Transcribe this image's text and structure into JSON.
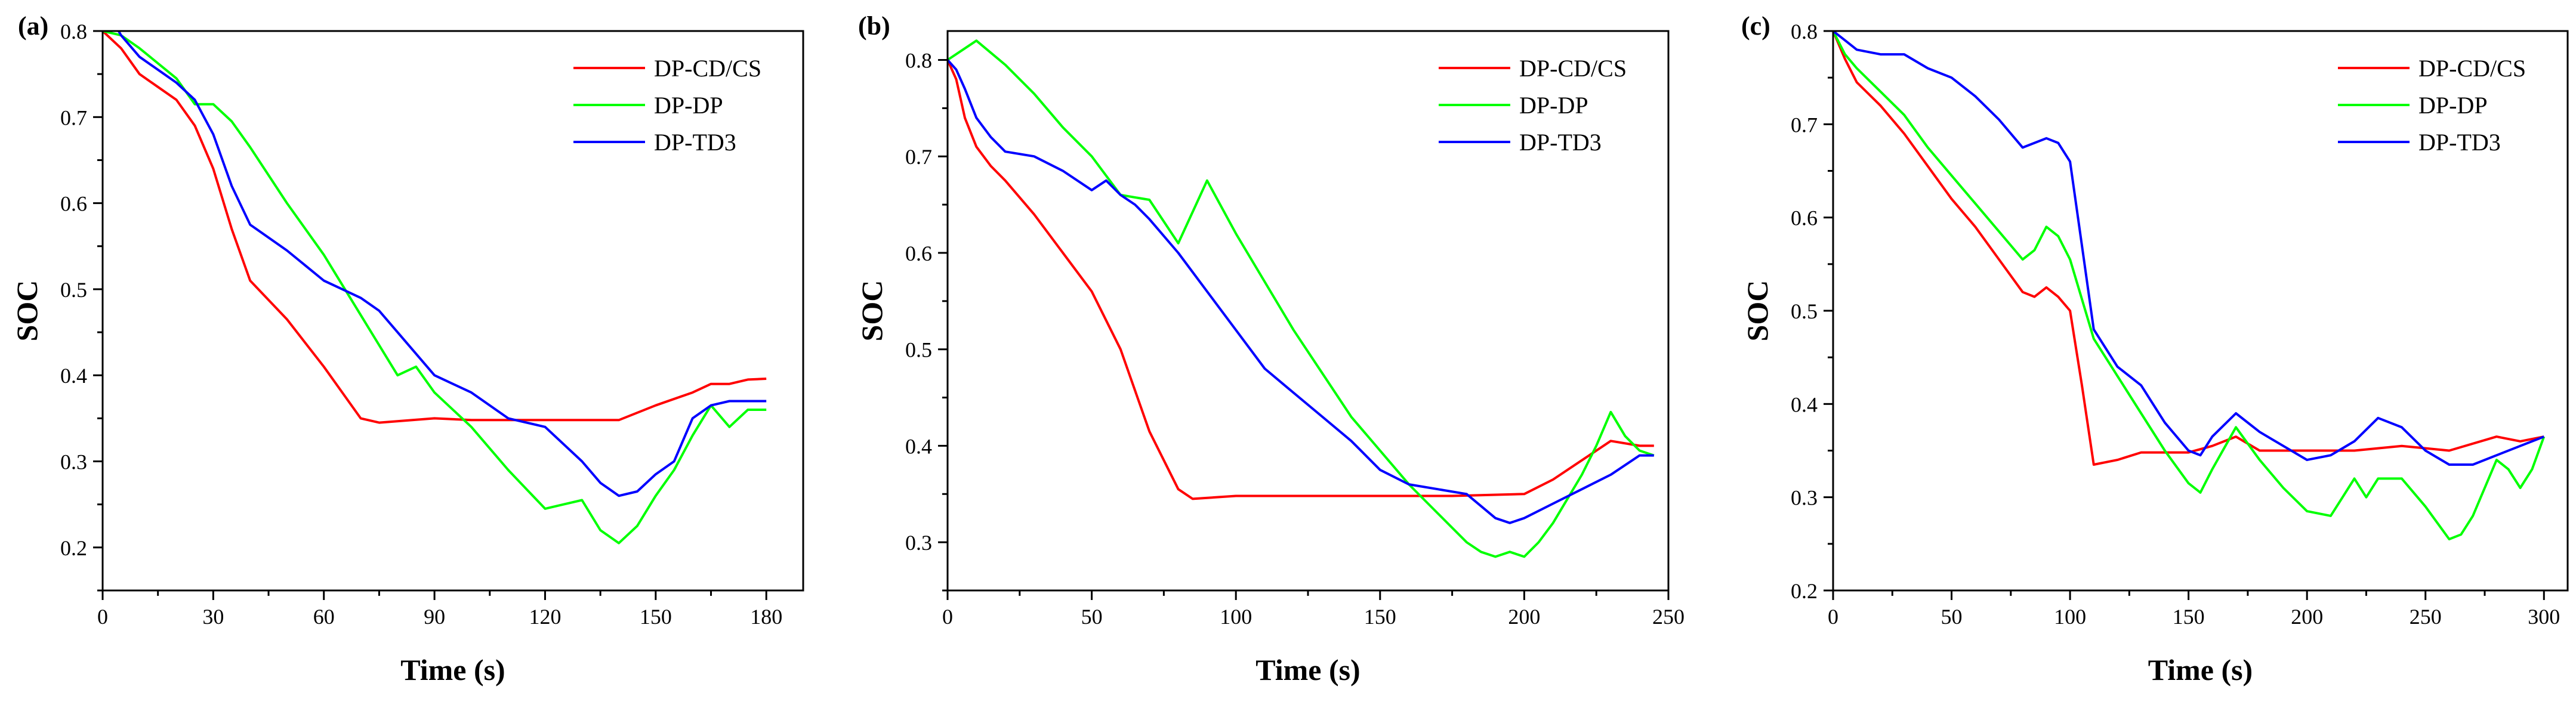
{
  "chart_data": [
    {
      "type": "line",
      "panel_label": "(a)",
      "xlabel": "Time (s)",
      "ylabel": "SOC",
      "xlim": [
        0,
        190
      ],
      "ylim": [
        0.15,
        0.8
      ],
      "xticks": [
        0,
        30,
        60,
        90,
        120,
        150,
        180
      ],
      "yticks": [
        0.2,
        0.3,
        0.4,
        0.5,
        0.6,
        0.7,
        0.8
      ],
      "grid": false,
      "legend_position": "top-right",
      "series": [
        {
          "name": "DP-CD/CS",
          "color": "#ff0000",
          "x": [
            0,
            5,
            10,
            15,
            20,
            25,
            30,
            35,
            40,
            50,
            60,
            70,
            75,
            90,
            100,
            120,
            130,
            140,
            150,
            160,
            165,
            170,
            175,
            180
          ],
          "y": [
            0.8,
            0.78,
            0.75,
            0.735,
            0.72,
            0.69,
            0.64,
            0.57,
            0.51,
            0.465,
            0.41,
            0.35,
            0.345,
            0.35,
            0.348,
            0.348,
            0.348,
            0.348,
            0.365,
            0.38,
            0.39,
            0.39,
            0.395,
            0.396
          ]
        },
        {
          "name": "DP-DP",
          "color": "#00ff00",
          "x": [
            0,
            5,
            10,
            20,
            25,
            30,
            35,
            40,
            50,
            60,
            70,
            80,
            85,
            90,
            100,
            110,
            120,
            125,
            130,
            135,
            140,
            145,
            150,
            155,
            160,
            165,
            170,
            175,
            180
          ],
          "y": [
            0.8,
            0.795,
            0.78,
            0.745,
            0.715,
            0.715,
            0.695,
            0.665,
            0.6,
            0.54,
            0.47,
            0.4,
            0.41,
            0.38,
            0.34,
            0.29,
            0.245,
            0.25,
            0.255,
            0.22,
            0.205,
            0.225,
            0.26,
            0.29,
            0.33,
            0.365,
            0.34,
            0.36,
            0.36
          ]
        },
        {
          "name": "DP-TD3",
          "color": "#0000ff",
          "x": [
            0,
            3,
            5,
            10,
            20,
            25,
            30,
            35,
            40,
            50,
            60,
            65,
            70,
            75,
            80,
            90,
            100,
            110,
            120,
            130,
            135,
            140,
            145,
            150,
            155,
            160,
            165,
            170,
            175,
            180
          ],
          "y": [
            0.8,
            0.81,
            0.795,
            0.77,
            0.74,
            0.72,
            0.68,
            0.62,
            0.575,
            0.545,
            0.51,
            0.5,
            0.49,
            0.475,
            0.45,
            0.4,
            0.38,
            0.35,
            0.34,
            0.3,
            0.275,
            0.26,
            0.265,
            0.285,
            0.3,
            0.35,
            0.365,
            0.37,
            0.37,
            0.37
          ]
        }
      ]
    },
    {
      "type": "line",
      "panel_label": "(b)",
      "xlabel": "Time (s)",
      "ylabel": "SOC",
      "xlim": [
        0,
        250
      ],
      "ylim": [
        0.25,
        0.83
      ],
      "xticks": [
        0,
        50,
        100,
        150,
        200,
        250
      ],
      "yticks": [
        0.3,
        0.4,
        0.5,
        0.6,
        0.7,
        0.8
      ],
      "grid": false,
      "legend_position": "top-right",
      "series": [
        {
          "name": "DP-CD/CS",
          "color": "#ff0000",
          "x": [
            0,
            3,
            6,
            10,
            15,
            20,
            30,
            40,
            50,
            60,
            70,
            75,
            80,
            85,
            100,
            150,
            175,
            200,
            210,
            220,
            230,
            240,
            245
          ],
          "y": [
            0.8,
            0.78,
            0.74,
            0.71,
            0.69,
            0.675,
            0.64,
            0.6,
            0.56,
            0.5,
            0.415,
            0.385,
            0.355,
            0.345,
            0.348,
            0.348,
            0.348,
            0.35,
            0.365,
            0.385,
            0.405,
            0.4,
            0.4
          ]
        },
        {
          "name": "DP-DP",
          "color": "#00ff00",
          "x": [
            0,
            5,
            10,
            20,
            30,
            40,
            50,
            60,
            70,
            80,
            90,
            100,
            110,
            120,
            130,
            140,
            150,
            160,
            170,
            180,
            185,
            190,
            195,
            200,
            205,
            210,
            220,
            225,
            230,
            235,
            240,
            245
          ],
          "y": [
            0.8,
            0.81,
            0.82,
            0.795,
            0.765,
            0.73,
            0.7,
            0.66,
            0.655,
            0.61,
            0.675,
            0.62,
            0.57,
            0.52,
            0.475,
            0.43,
            0.395,
            0.36,
            0.33,
            0.3,
            0.29,
            0.285,
            0.29,
            0.285,
            0.3,
            0.32,
            0.37,
            0.4,
            0.435,
            0.41,
            0.395,
            0.39
          ]
        },
        {
          "name": "DP-TD3",
          "color": "#0000ff",
          "x": [
            0,
            3,
            6,
            10,
            15,
            20,
            30,
            40,
            50,
            55,
            60,
            65,
            70,
            80,
            90,
            100,
            110,
            120,
            130,
            140,
            150,
            160,
            170,
            180,
            190,
            195,
            200,
            210,
            220,
            230,
            240,
            245
          ],
          "y": [
            0.8,
            0.79,
            0.77,
            0.74,
            0.72,
            0.705,
            0.7,
            0.685,
            0.665,
            0.675,
            0.66,
            0.65,
            0.635,
            0.6,
            0.56,
            0.52,
            0.48,
            0.455,
            0.43,
            0.405,
            0.375,
            0.36,
            0.355,
            0.35,
            0.325,
            0.32,
            0.325,
            0.34,
            0.355,
            0.37,
            0.39,
            0.39
          ]
        }
      ]
    },
    {
      "type": "line",
      "panel_label": "(c)",
      "xlabel": "Time (s)",
      "ylabel": "SOC",
      "xlim": [
        0,
        310
      ],
      "ylim": [
        0.2,
        0.8
      ],
      "xticks": [
        0,
        50,
        100,
        150,
        200,
        250,
        300
      ],
      "yticks": [
        0.2,
        0.3,
        0.4,
        0.5,
        0.6,
        0.7,
        0.8
      ],
      "grid": false,
      "legend_position": "top-right",
      "series": [
        {
          "name": "DP-CD/CS",
          "color": "#ff0000",
          "x": [
            0,
            5,
            10,
            20,
            30,
            40,
            50,
            60,
            70,
            80,
            85,
            90,
            95,
            100,
            105,
            110,
            120,
            130,
            150,
            160,
            170,
            180,
            200,
            220,
            240,
            260,
            280,
            290,
            300
          ],
          "y": [
            0.8,
            0.77,
            0.745,
            0.72,
            0.69,
            0.655,
            0.62,
            0.59,
            0.555,
            0.52,
            0.515,
            0.525,
            0.515,
            0.5,
            0.42,
            0.335,
            0.34,
            0.348,
            0.348,
            0.355,
            0.365,
            0.35,
            0.35,
            0.35,
            0.355,
            0.35,
            0.365,
            0.36,
            0.365
          ]
        },
        {
          "name": "DP-DP",
          "color": "#00ff00",
          "x": [
            0,
            5,
            10,
            20,
            30,
            40,
            50,
            60,
            70,
            80,
            85,
            90,
            95,
            100,
            110,
            120,
            130,
            140,
            150,
            155,
            160,
            170,
            180,
            190,
            200,
            210,
            215,
            220,
            225,
            230,
            240,
            250,
            260,
            265,
            270,
            280,
            285,
            290,
            295,
            300
          ],
          "y": [
            0.8,
            0.775,
            0.76,
            0.735,
            0.71,
            0.675,
            0.645,
            0.615,
            0.585,
            0.555,
            0.565,
            0.59,
            0.58,
            0.555,
            0.47,
            0.43,
            0.39,
            0.35,
            0.315,
            0.305,
            0.33,
            0.375,
            0.34,
            0.31,
            0.285,
            0.28,
            0.3,
            0.32,
            0.3,
            0.32,
            0.32,
            0.29,
            0.255,
            0.26,
            0.28,
            0.34,
            0.33,
            0.31,
            0.33,
            0.365
          ]
        },
        {
          "name": "DP-TD3",
          "color": "#0000ff",
          "x": [
            0,
            5,
            10,
            20,
            30,
            40,
            50,
            60,
            70,
            80,
            90,
            95,
            100,
            105,
            110,
            120,
            130,
            140,
            150,
            155,
            160,
            170,
            180,
            190,
            200,
            210,
            220,
            230,
            240,
            250,
            260,
            270,
            280,
            290,
            300
          ],
          "y": [
            0.8,
            0.79,
            0.78,
            0.775,
            0.775,
            0.76,
            0.75,
            0.73,
            0.705,
            0.675,
            0.685,
            0.68,
            0.66,
            0.57,
            0.48,
            0.44,
            0.42,
            0.38,
            0.35,
            0.345,
            0.365,
            0.39,
            0.37,
            0.355,
            0.34,
            0.345,
            0.36,
            0.385,
            0.375,
            0.35,
            0.335,
            0.335,
            0.345,
            0.355,
            0.365
          ]
        }
      ]
    }
  ]
}
